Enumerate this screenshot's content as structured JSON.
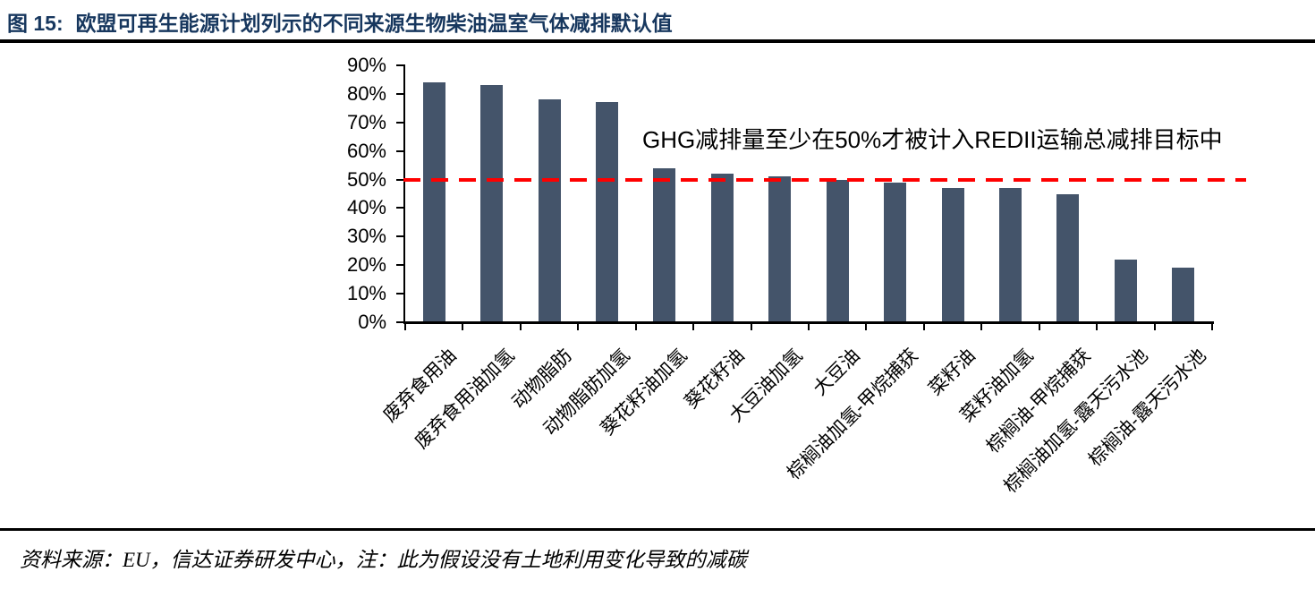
{
  "header": {
    "fig_label": "图 15:",
    "title": "欧盟可再生能源计划列示的不同来源生物柴油温室气体减排默认值"
  },
  "chart_data": {
    "type": "bar",
    "title": "欧盟可再生能源计划列示的不同来源生物柴油温室气体减排默认值",
    "categories": [
      "废弃食用油",
      "废弃食用油加氢",
      "动物脂肪",
      "动物脂肪加氢",
      "葵花籽油加氢",
      "葵花籽油",
      "大豆油加氢",
      "大豆油",
      "棕榈油加氢-甲烷捕获",
      "菜籽油",
      "菜籽油加氢",
      "棕榈油-甲烷捕获",
      "棕榈油加氢-露天污水池",
      "棕榈油-露天污水池"
    ],
    "values": [
      84,
      83,
      78,
      77,
      54,
      52,
      51,
      50,
      49,
      47,
      47,
      45,
      22,
      19
    ],
    "unit": "%",
    "xlabel": "",
    "ylabel": "",
    "ylim": [
      0,
      90
    ],
    "ytick_step": 10,
    "ytick_labels": [
      "90%",
      "80%",
      "70%",
      "60%",
      "50%",
      "40%",
      "30%",
      "20%",
      "10%",
      "0%"
    ],
    "grid": false,
    "legend": "none",
    "bar_color": "#44546A",
    "reference_line": {
      "value": 50,
      "color": "#FF0000",
      "style": "dashed"
    },
    "annotation": "GHG减排量至少在50%才被计入REDII运输总减排目标中"
  },
  "footer": {
    "source_note": "资料来源：EU，信达证券研发中心，注：此为假设没有土地利用变化导致的减碳"
  },
  "colors": {
    "title_text": "#17375E",
    "bar": "#44546A",
    "reference_line": "#FF0000",
    "axis": "#000000"
  }
}
